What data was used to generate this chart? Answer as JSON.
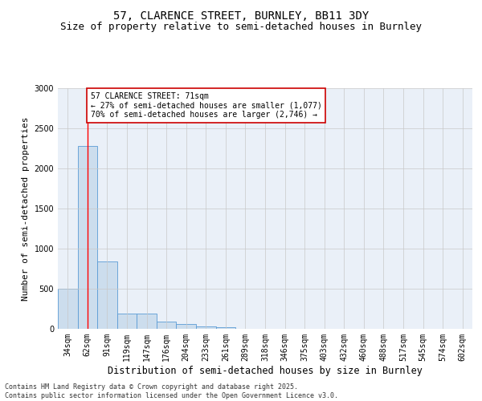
{
  "title1": "57, CLARENCE STREET, BURNLEY, BB11 3DY",
  "title2": "Size of property relative to semi-detached houses in Burnley",
  "xlabel": "Distribution of semi-detached houses by size in Burnley",
  "ylabel": "Number of semi-detached properties",
  "categories": [
    "34sqm",
    "62sqm",
    "91sqm",
    "119sqm",
    "147sqm",
    "176sqm",
    "204sqm",
    "233sqm",
    "261sqm",
    "289sqm",
    "318sqm",
    "346sqm",
    "375sqm",
    "403sqm",
    "432sqm",
    "460sqm",
    "488sqm",
    "517sqm",
    "545sqm",
    "574sqm",
    "602sqm"
  ],
  "values": [
    500,
    2280,
    840,
    195,
    195,
    95,
    60,
    35,
    20,
    5,
    0,
    0,
    0,
    0,
    0,
    0,
    0,
    0,
    0,
    0,
    0
  ],
  "bar_color": "#ccdded",
  "bar_edge_color": "#5b9bd5",
  "bar_edge_width": 0.6,
  "grid_color": "#c8c8c8",
  "background_color": "#ffffff",
  "plot_bg_color": "#eaf0f8",
  "annotation_text": "57 CLARENCE STREET: 71sqm\n← 27% of semi-detached houses are smaller (1,077)\n70% of semi-detached houses are larger (2,746) →",
  "red_line_x": 1.0,
  "annotation_box_color": "#ffffff",
  "annotation_box_edge": "#cc0000",
  "ylim": [
    0,
    3000
  ],
  "yticks": [
    0,
    500,
    1000,
    1500,
    2000,
    2500,
    3000
  ],
  "title1_fontsize": 10,
  "title2_fontsize": 9,
  "xlabel_fontsize": 8.5,
  "ylabel_fontsize": 8,
  "tick_fontsize": 7,
  "annotation_fontsize": 7,
  "footer_text": "Contains HM Land Registry data © Crown copyright and database right 2025.\nContains public sector information licensed under the Open Government Licence v3.0.",
  "footer_fontsize": 6
}
